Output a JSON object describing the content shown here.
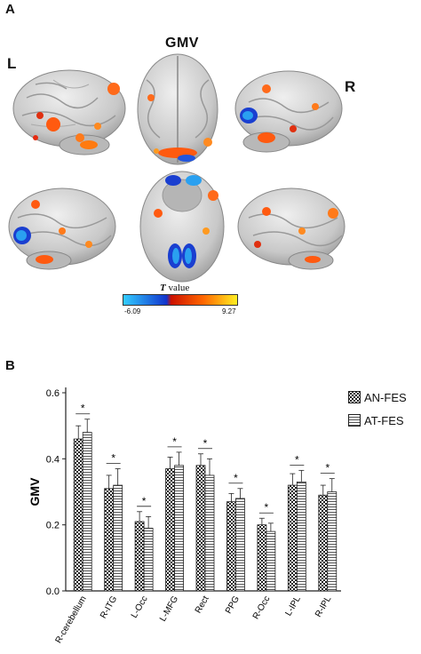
{
  "panel_a": {
    "label": "A",
    "title": "GMV",
    "left_label": "L",
    "right_label": "R",
    "colorbar": {
      "title_italic": "T",
      "title_rest": " value",
      "min_label": "-6.09",
      "max_label": "9.27",
      "colors": {
        "cold_light": "#33ccff",
        "cold_dark": "#1133cc",
        "hot_dark": "#cc1100",
        "hot_mid": "#ff6600",
        "hot_light": "#ffee22"
      }
    }
  },
  "panel_b": {
    "label": "B",
    "legend": [
      {
        "label": "AN-FES",
        "pattern": "checker"
      },
      {
        "label": "AT-FES",
        "pattern": "stripes"
      }
    ]
  },
  "chart_data": {
    "type": "bar",
    "categories": [
      "R-cerebellum",
      "R-ITG",
      "L-Occ",
      "L-MFG",
      "Rect",
      "PPG",
      "R-Occ",
      "L-IPL",
      "R-IPL"
    ],
    "series": [
      {
        "name": "AN-FES",
        "values": [
          0.46,
          0.31,
          0.21,
          0.37,
          0.38,
          0.27,
          0.2,
          0.32,
          0.29
        ],
        "errors": [
          0.04,
          0.04,
          0.03,
          0.035,
          0.035,
          0.025,
          0.02,
          0.035,
          0.03
        ]
      },
      {
        "name": "AT-FES",
        "values": [
          0.48,
          0.32,
          0.19,
          0.38,
          0.35,
          0.28,
          0.18,
          0.33,
          0.3
        ],
        "errors": [
          0.04,
          0.05,
          0.035,
          0.04,
          0.05,
          0.03,
          0.025,
          0.035,
          0.04
        ]
      }
    ],
    "significance": [
      "*",
      "*",
      "*",
      "*",
      "*",
      "*",
      "*",
      "*",
      "*"
    ],
    "ylabel": "GMV",
    "xlabel": "",
    "ylim": [
      0.0,
      0.6
    ],
    "yticks": [
      "0.0",
      "0.2",
      "0.4",
      "0.6"
    ],
    "grid": false,
    "legend_position": "right"
  }
}
